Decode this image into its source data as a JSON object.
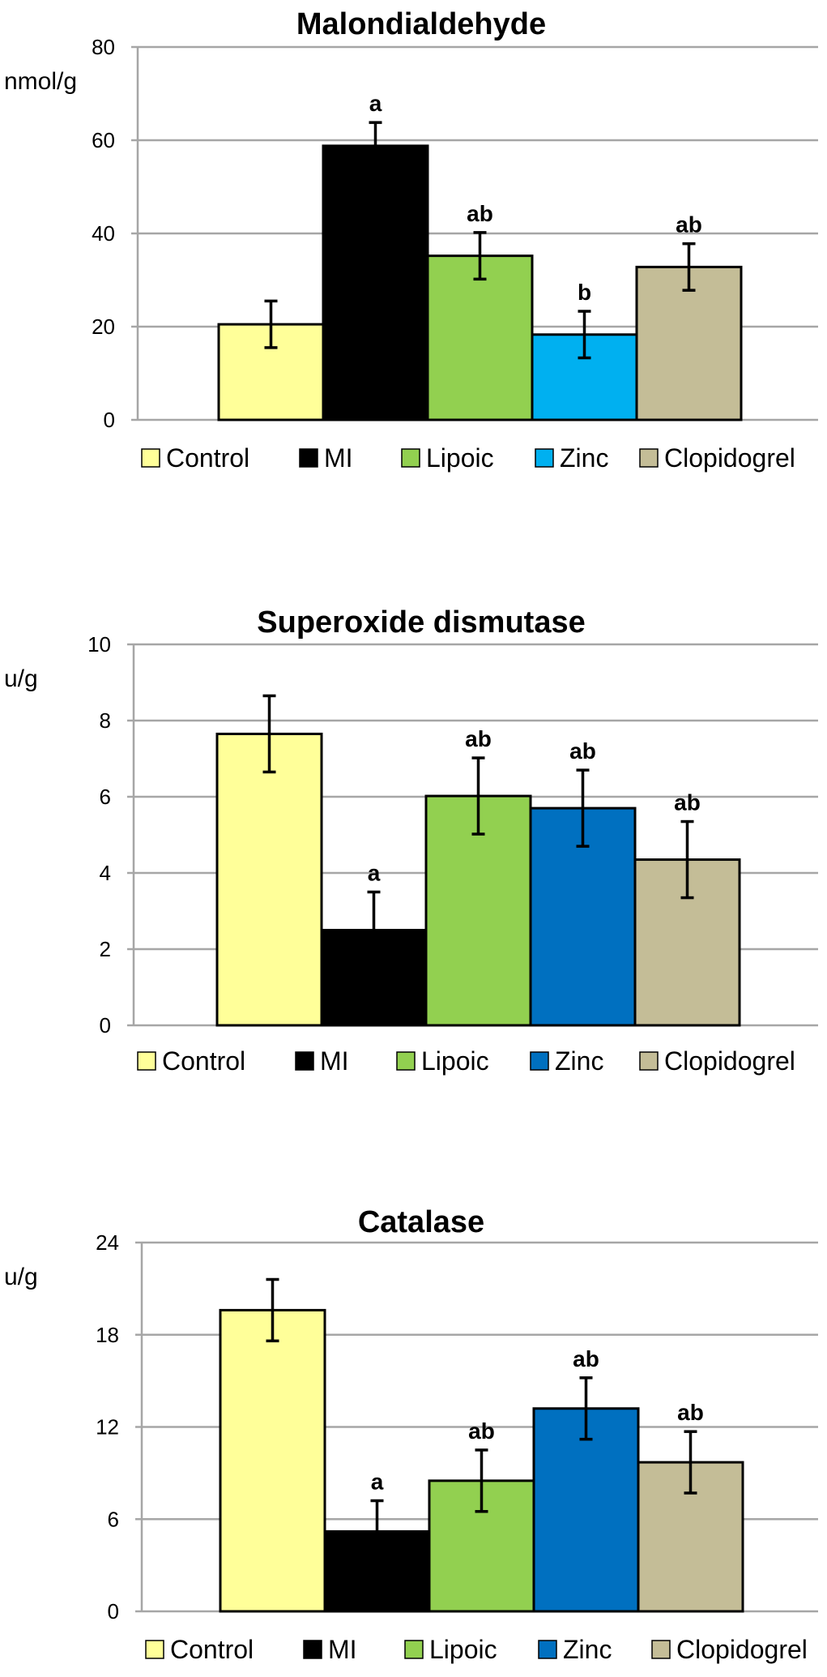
{
  "chart_data": [
    {
      "type": "bar",
      "title": "Malondialdehyde",
      "ylabel": "nmol/g",
      "ylim": [
        0,
        80
      ],
      "yticks": [
        0,
        20,
        40,
        60,
        80
      ],
      "categories": [
        "Control",
        "MI",
        "Lipoic",
        "Zinc",
        "Clopidogrel"
      ],
      "values": [
        20.5,
        58.8,
        35.2,
        18.3,
        32.8
      ],
      "errors": [
        5,
        5,
        5,
        5,
        5
      ],
      "labels": [
        "",
        "a",
        "ab",
        "b",
        "ab"
      ],
      "colors": [
        "#ffff99",
        "#000000",
        "#92d050",
        "#00b0f0",
        "#c4bd97"
      ],
      "legend": [
        "Control",
        "MI",
        "Lipoic",
        "Zinc",
        "Clopidogrel"
      ]
    },
    {
      "type": "bar",
      "title": "Superoxide dismutase",
      "ylabel": "u/g",
      "ylim": [
        0,
        10
      ],
      "yticks": [
        0,
        2,
        4,
        6,
        8,
        10
      ],
      "categories": [
        "Control",
        "MI",
        "Lipoic",
        "Zinc",
        "Clopidogrel"
      ],
      "values": [
        7.65,
        2.5,
        6.02,
        5.7,
        4.35
      ],
      "errors": [
        1,
        1,
        1,
        1,
        1
      ],
      "labels": [
        "",
        "a",
        "ab",
        "ab",
        "ab"
      ],
      "colors": [
        "#ffff99",
        "#000000",
        "#92d050",
        "#0070c0",
        "#c4bd97"
      ],
      "legend": [
        "Control",
        "MI",
        "Lipoic",
        "Zinc",
        "Clopidogrel"
      ]
    },
    {
      "type": "bar",
      "title": "Catalase",
      "ylabel": "u/g",
      "ylim": [
        0,
        24
      ],
      "yticks": [
        0,
        6,
        12,
        18,
        24
      ],
      "categories": [
        "Control",
        "MI",
        "Lipoic",
        "Zinc",
        "Clopidogrel"
      ],
      "values": [
        19.6,
        5.2,
        8.5,
        13.2,
        9.7
      ],
      "errors": [
        2,
        2,
        2,
        2,
        2
      ],
      "labels": [
        "",
        "a",
        "ab",
        "ab",
        "ab"
      ],
      "colors": [
        "#ffff99",
        "#000000",
        "#92d050",
        "#0070c0",
        "#c4bd97"
      ],
      "legend": [
        "Control",
        "MI",
        "Lipoic",
        "Zinc",
        "Clopidogrel"
      ]
    }
  ]
}
